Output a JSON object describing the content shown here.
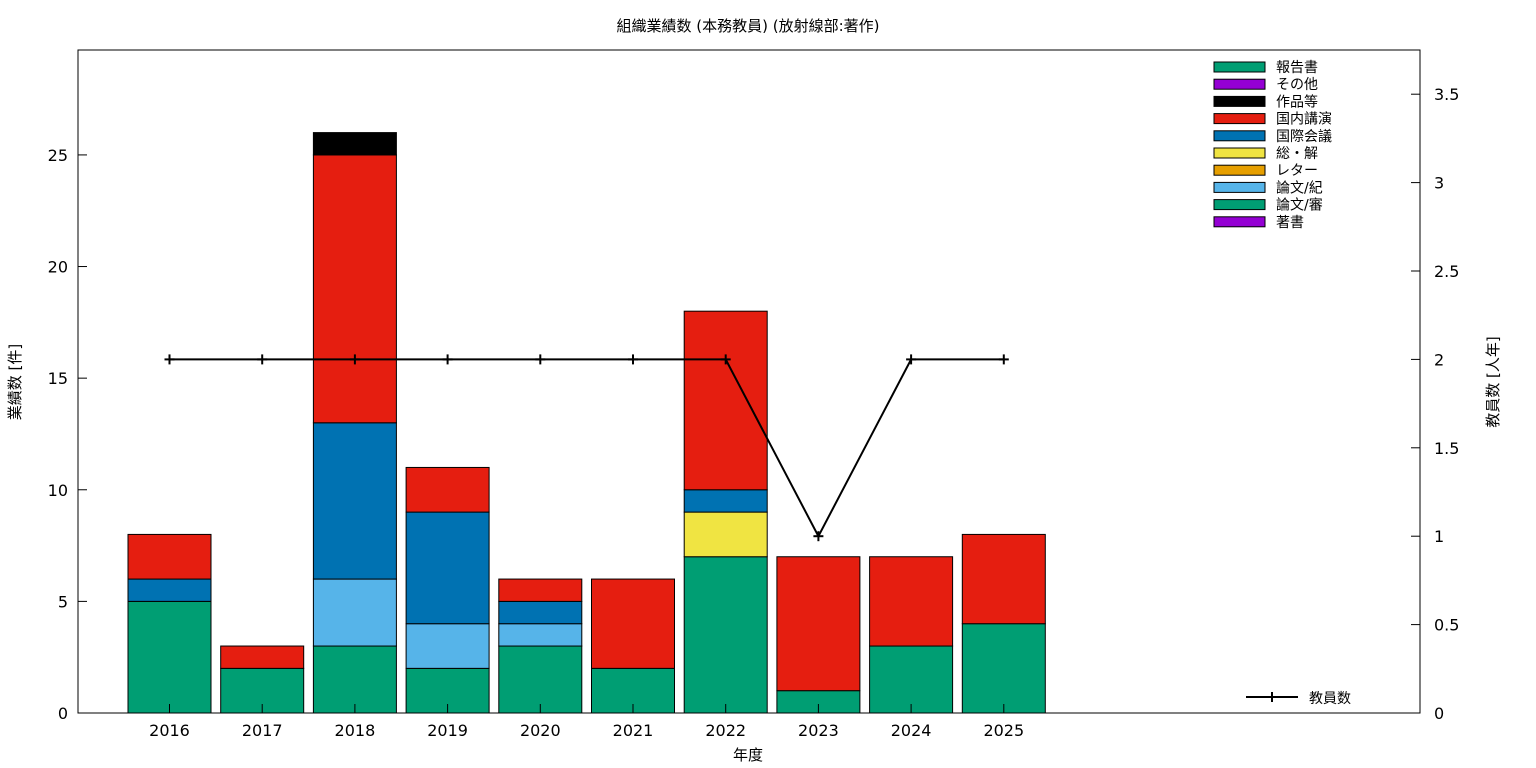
{
  "chart_data": {
    "type": "bar",
    "stacked": true,
    "title": "組織業績数 (本務教員) (放射線部:著作)",
    "xlabel": "年度",
    "ylabel": "業績数 [件]",
    "y2label": "教員数 [人年]",
    "categories": [
      "2016",
      "2017",
      "2018",
      "2019",
      "2020",
      "2021",
      "2022",
      "2023",
      "2024",
      "2025"
    ],
    "ylim": [
      0,
      29.7
    ],
    "yticks": [
      0,
      5,
      10,
      15,
      20,
      25
    ],
    "y2lim": [
      0,
      3.75
    ],
    "y2ticks": [
      0,
      0.5,
      1,
      1.5,
      2,
      2.5,
      3,
      3.5
    ],
    "legend_position": "top-right",
    "series": [
      {
        "name": "著書",
        "color": "#9400d3",
        "values": [
          0,
          0,
          0,
          0,
          0,
          0,
          0,
          0,
          0,
          0
        ]
      },
      {
        "name": "論文/審",
        "color": "#009e73",
        "values": [
          5,
          2,
          3,
          2,
          3,
          2,
          7,
          1,
          3,
          4
        ]
      },
      {
        "name": "論文/紀",
        "color": "#56b4e9",
        "values": [
          0,
          0,
          3,
          2,
          1,
          0,
          0,
          0,
          0,
          0
        ]
      },
      {
        "name": "レター",
        "color": "#e69f00",
        "values": [
          0,
          0,
          0,
          0,
          0,
          0,
          0,
          0,
          0,
          0
        ]
      },
      {
        "name": "総・解",
        "color": "#f0e442",
        "values": [
          0,
          0,
          0,
          0,
          0,
          0,
          2,
          0,
          0,
          0
        ]
      },
      {
        "name": "国際会議",
        "color": "#0072b2",
        "values": [
          1,
          0,
          7,
          5,
          1,
          0,
          1,
          0,
          0,
          0
        ]
      },
      {
        "name": "国内講演",
        "color": "#e51e10",
        "values": [
          2,
          1,
          12,
          2,
          1,
          4,
          8,
          6,
          4,
          4
        ]
      },
      {
        "name": "作品等",
        "color": "#000000",
        "values": [
          0,
          0,
          1,
          0,
          0,
          0,
          0,
          0,
          0,
          0
        ]
      },
      {
        "name": "その他",
        "color": "#9400d3",
        "values": [
          0,
          0,
          0,
          0,
          0,
          0,
          0,
          0,
          0,
          0
        ]
      },
      {
        "name": "報告書",
        "color": "#009e73",
        "values": [
          0,
          0,
          0,
          0,
          0,
          0,
          0,
          0,
          0,
          0
        ]
      }
    ],
    "line_series": {
      "name": "教員数",
      "axis": "y2",
      "color": "#000000",
      "values": [
        2,
        2,
        2,
        2,
        2,
        2,
        2,
        1,
        2,
        2
      ]
    }
  }
}
